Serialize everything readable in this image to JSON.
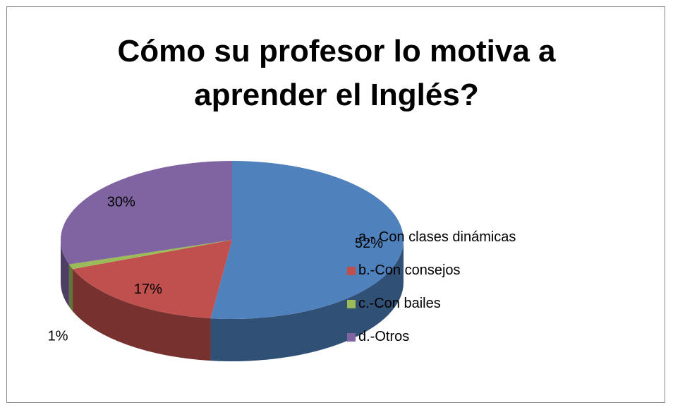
{
  "chart_data": {
    "type": "pie",
    "title": "Cómo su profesor lo motiva a aprender el Inglés?",
    "categories": [
      "a.- Con clases dinámicas",
      "b.-Con consejos",
      "c.-Con bailes",
      "d.-Otros"
    ],
    "values": [
      52,
      17,
      1,
      30
    ],
    "value_labels": [
      "52%",
      "17%",
      "1%",
      "30%"
    ],
    "colors": [
      "#4f81bd",
      "#c0504d",
      "#9bbb59",
      "#8064a2"
    ],
    "legend": "right"
  }
}
